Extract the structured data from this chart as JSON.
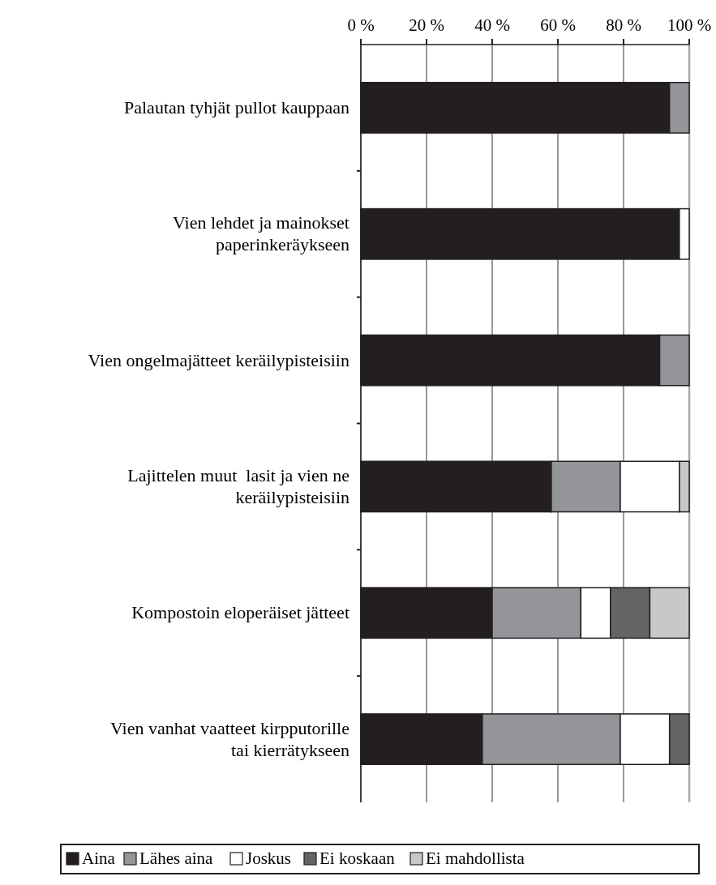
{
  "chart_data": {
    "type": "bar",
    "orientation": "horizontal",
    "stacked": true,
    "categories": [
      "Palautan tyhjät pullot kauppaan",
      "Vien lehdet ja mainokset\npaperinkeräykseen",
      "Vien ongelmajätteet keräilypisteisiin",
      "Lajittelen muut  lasit ja vien ne\nkeräilypisteisiin",
      "Kompostoin eloperäiset jätteet",
      "Vien vanhat vaatteet kirpputorille\ntai kierrätykseen"
    ],
    "series": [
      {
        "name": "Aina",
        "color": "#231f20",
        "values": [
          94,
          97,
          91,
          58,
          40,
          37
        ]
      },
      {
        "name": "Lähes aina",
        "color": "#939598",
        "values": [
          6,
          0,
          9,
          21,
          27,
          42
        ]
      },
      {
        "name": "Joskus",
        "color": "#ffffff",
        "values": [
          0,
          3,
          0,
          18,
          9,
          15
        ]
      },
      {
        "name": "Ei koskaan",
        "color": "#636466",
        "values": [
          0,
          0,
          0,
          0,
          12,
          6
        ]
      },
      {
        "name": "Ei mahdollista",
        "color": "#c7c8ca",
        "values": [
          0,
          0,
          0,
          3,
          12,
          0
        ]
      }
    ],
    "xlim": [
      0,
      100
    ],
    "xticks": [
      {
        "value": 0,
        "label": "0 %"
      },
      {
        "value": 20,
        "label": "20 %"
      },
      {
        "value": 40,
        "label": "40 %"
      },
      {
        "value": 60,
        "label": "60 %"
      },
      {
        "value": 80,
        "label": "80 %"
      },
      {
        "value": 100,
        "label": "100 %"
      }
    ],
    "grid": "x",
    "legend": "bottom"
  }
}
